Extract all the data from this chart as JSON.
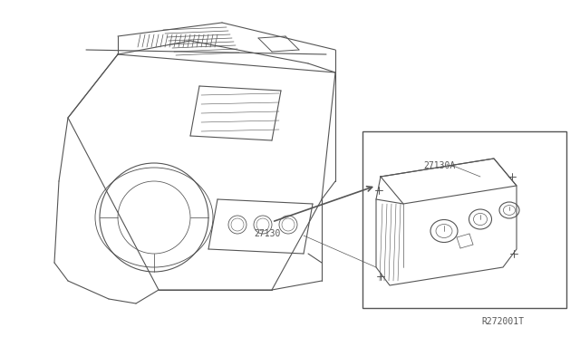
{
  "title": "",
  "background_color": "#ffffff",
  "line_color": "#555555",
  "part_number_main": "27130",
  "part_number_detail": "27130A",
  "diagram_code": "R272001T",
  "fig_width": 6.4,
  "fig_height": 3.72,
  "dpi": 100
}
